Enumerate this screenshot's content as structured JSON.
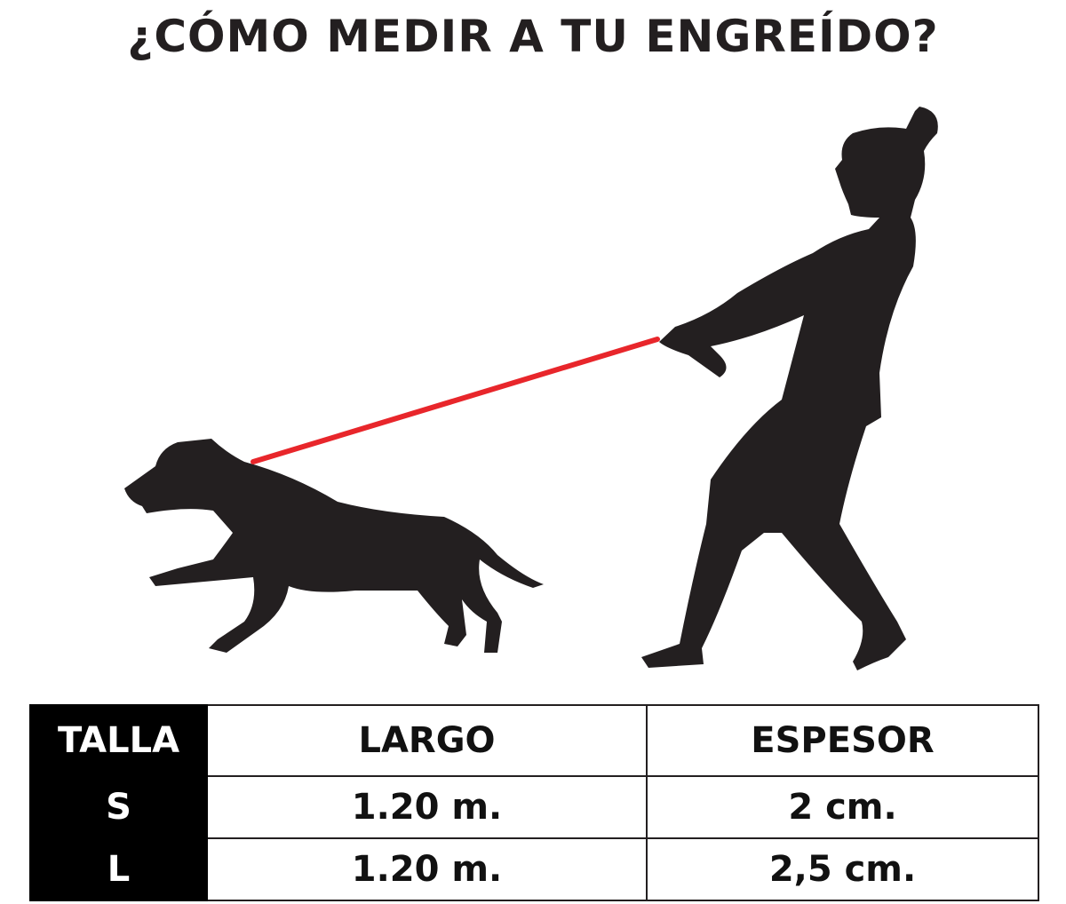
{
  "title": "¿CÓMO MEDIR A TU ENGREÍDO?",
  "illustration": {
    "leash_color": "#e8262b",
    "silhouette_color": "#231f20"
  },
  "table": {
    "headers": [
      "TALLA",
      "LARGO",
      "ESPESOR"
    ],
    "rows": [
      [
        "S",
        "1.20 m.",
        "2 cm."
      ],
      [
        "L",
        "1.20 m.",
        "2,5 cm."
      ]
    ]
  }
}
